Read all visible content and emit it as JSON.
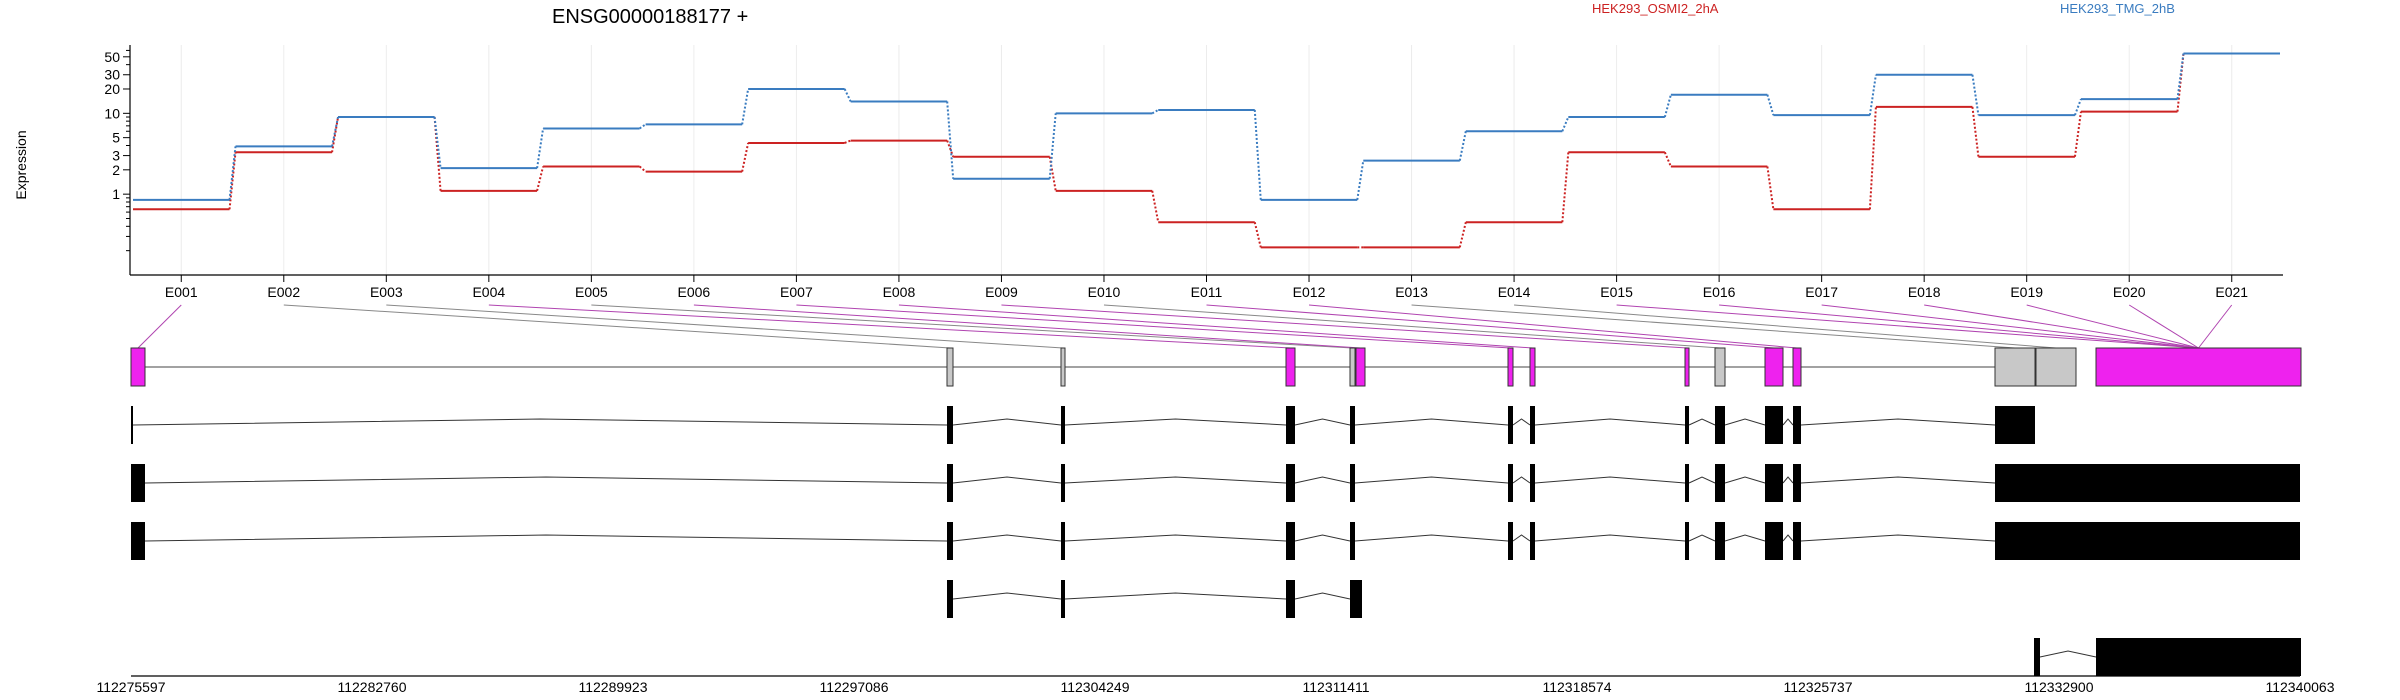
{
  "chart_data": {
    "type": "line",
    "title": "ENSG00000188177 +",
    "ylabel": "Expression",
    "y_scale": "log",
    "y_ticks": [
      1,
      2,
      3,
      5,
      10,
      20,
      30,
      50
    ],
    "ylim": [
      0.1,
      70
    ],
    "grid": "vertical",
    "categories": [
      "E001",
      "E002",
      "E003",
      "E004",
      "E005",
      "E006",
      "E007",
      "E008",
      "E009",
      "E010",
      "E011",
      "E012",
      "E013",
      "E014",
      "E015",
      "E016",
      "E017",
      "E018",
      "E019",
      "E020",
      "E021"
    ],
    "series": [
      {
        "name": "HEK293_OSMI2_2hA",
        "color": "#cc2222",
        "values": [
          0.65,
          3.3,
          9.0,
          1.1,
          2.2,
          1.9,
          4.3,
          4.6,
          2.9,
          1.1,
          0.45,
          0.22,
          0.22,
          0.45,
          3.3,
          2.2,
          0.65,
          12.0,
          2.9,
          10.5,
          55.0
        ]
      },
      {
        "name": "HEK293_TMG_2hB",
        "color": "#3a7cc0",
        "values": [
          0.85,
          3.9,
          9.0,
          2.1,
          6.5,
          7.3,
          20.0,
          14.0,
          1.55,
          10.0,
          11.0,
          0.85,
          2.6,
          6.0,
          9.0,
          17.0,
          9.5,
          30.0,
          9.5,
          15.0,
          55.0
        ]
      }
    ],
    "coordinates": [
      "112275597",
      "112282760",
      "112289923",
      "112297086",
      "112304249",
      "112311411",
      "112318574",
      "112325737",
      "112332900",
      "112340063"
    ],
    "exon_colors": {
      "highlighted": "#ee22ee",
      "normal": "#c8c8c8",
      "transcript": "#000000"
    }
  }
}
